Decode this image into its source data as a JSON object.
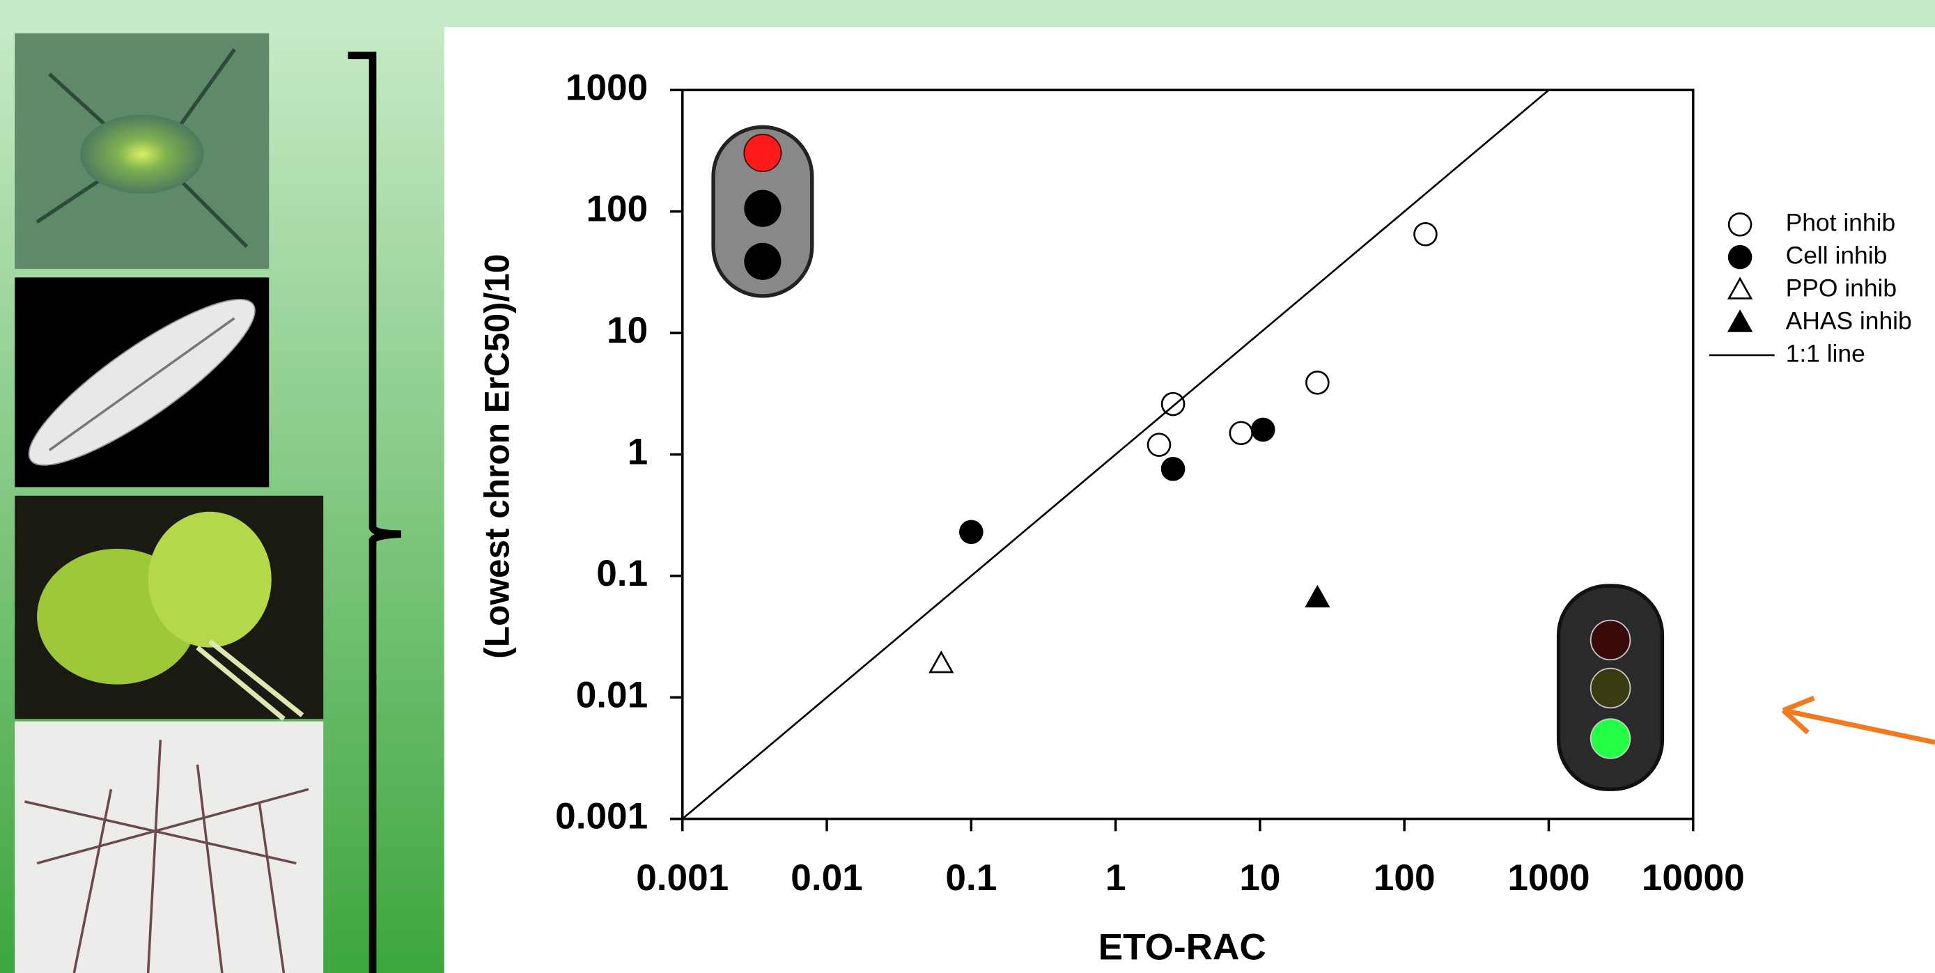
{
  "chart_data": {
    "type": "scatter",
    "xlabel": "ETO-RAC",
    "ylabel": "(Lowest chron ErC50)/10",
    "log_x": true,
    "log_y": true,
    "xlim": [
      0.001,
      10000
    ],
    "ylim": [
      0.001,
      1000
    ],
    "xticks": [
      0.001,
      0.01,
      0.1,
      1,
      10,
      100,
      1000,
      10000
    ],
    "yticks": [
      0.001,
      0.01,
      0.1,
      1,
      10,
      100,
      1000
    ],
    "series": [
      {
        "name": "Phot inhib",
        "marker": "circle",
        "fill": "none",
        "color": "#000000",
        "x": [
          140,
          2.5,
          2,
          7.4,
          25
        ],
        "values": [
          65,
          2.6,
          1.2,
          1.5,
          3.9
        ]
      },
      {
        "name": "Cell inhib",
        "marker": "circle",
        "fill": "#000000",
        "color": "#000000",
        "x": [
          0.1,
          2.5,
          10.5
        ],
        "values": [
          0.23,
          0.76,
          1.6
        ]
      },
      {
        "name": "PPO inhib",
        "marker": "triangle",
        "fill": "none",
        "color": "#000000",
        "x": [
          0.062
        ],
        "values": [
          0.019
        ]
      },
      {
        "name": "AHAS inhib",
        "marker": "triangle",
        "fill": "#000000",
        "color": "#000000",
        "x": [
          25
        ],
        "values": [
          0.066
        ]
      },
      {
        "name": "1:1 line",
        "marker": "line",
        "fill": "none",
        "color": "#000000",
        "x": [
          0.001,
          1000
        ],
        "values": [
          0.001,
          1000
        ]
      }
    ]
  }
}
